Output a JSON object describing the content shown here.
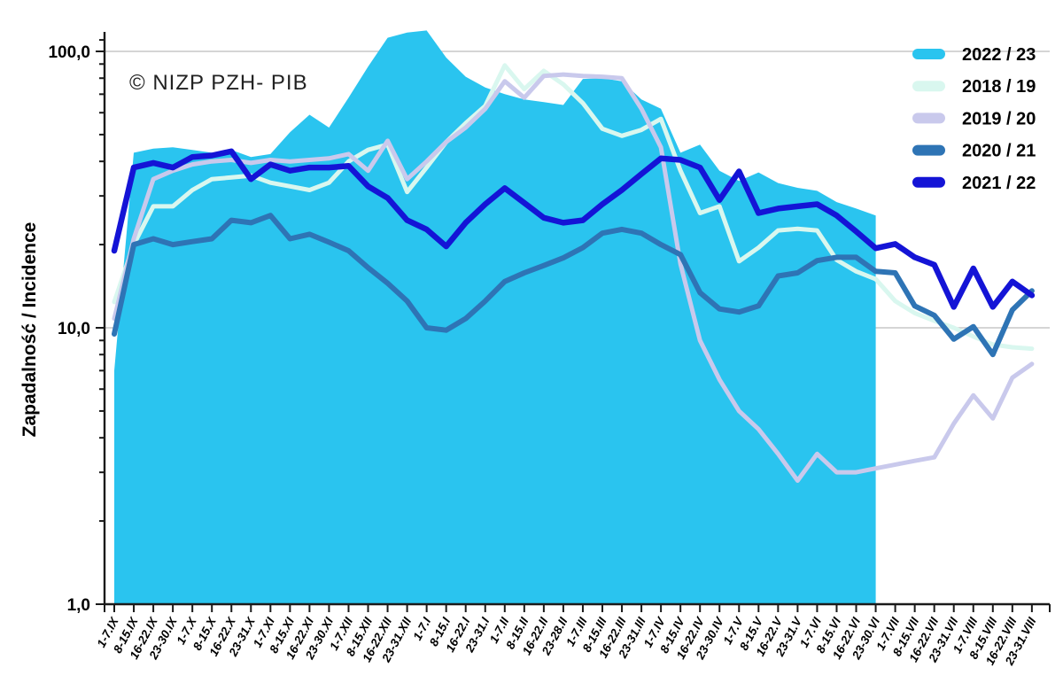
{
  "watermark": "© NIZP PZH- PIB",
  "chart_data": {
    "type": "area+line",
    "title": "",
    "ylabel": "Zapadalność  /  Incidence",
    "xlabel": "",
    "y_axis": {
      "scale": "log",
      "tick_labels": [
        "1,0",
        "10,0",
        "100,0"
      ],
      "tick_values": [
        1,
        10,
        100
      ],
      "ylim": [
        1,
        130
      ]
    },
    "grid": {
      "on": true,
      "values": [
        10,
        100
      ],
      "color": "#c7c7c7"
    },
    "legend_position": "top-right",
    "categories": [
      "1-7.IX",
      "8-15.IX",
      "16-22.IX",
      "23-30.IX",
      "1-7.X",
      "8-15.X",
      "16-22.X",
      "23-31.X",
      "1-7.XI",
      "8-15.XI",
      "16-22.XI",
      "23-30.XI",
      "1-7.XII",
      "8-15.XII",
      "16-22.XII",
      "23-31.XII",
      "1-7.I",
      "8-15.I",
      "16-22.I",
      "23-31.I",
      "1-7.II",
      "8-15.II",
      "16-22.II",
      "23-28.II",
      "1-7.III",
      "8-15.III",
      "16-22.III",
      "23-31.III",
      "1-7.IV",
      "8-15.IV",
      "16-22.IV",
      "23-30.IV",
      "1-7.V",
      "8-15.V",
      "16-22.V",
      "23-31.V",
      "1-7.VI",
      "8-15.VI",
      "16-22.VI",
      "23-30.VI",
      "1-7.VII",
      "8-15.VII",
      "16-22.VII",
      "23-31.VII",
      "1-7.VIII",
      "8-15.VIII",
      "16-22.VIII",
      "23-31.VIII"
    ],
    "series": [
      {
        "name": "2022 / 23",
        "style": "area",
        "color": "#2ac4ef",
        "stroke_width": 0,
        "values": [
          7,
          43,
          44.5,
          45,
          44,
          43,
          44,
          41.5,
          42.5,
          51,
          59,
          53,
          68,
          88,
          112,
          117,
          119,
          95,
          81,
          74,
          70,
          67,
          65.5,
          64,
          79.5,
          80,
          78,
          67,
          62,
          43,
          46,
          37,
          34,
          36.5,
          33.4,
          32.1,
          31.3,
          28.5,
          27,
          25.5
        ]
      },
      {
        "name": "2018 / 19",
        "style": "line",
        "color": "#d9f7ef",
        "stroke_width": 5,
        "values": [
          12.4,
          20,
          27.5,
          27.5,
          31.5,
          34.5,
          35,
          35.5,
          33.5,
          32.5,
          31.5,
          33.5,
          40,
          44,
          46,
          31,
          38,
          47,
          55,
          63.5,
          89,
          73,
          85,
          76,
          65,
          52.5,
          49.5,
          52,
          57,
          37,
          26,
          27.5,
          17.4,
          19.5,
          22.5,
          22.8,
          22.5,
          17.6,
          16,
          15,
          12.5,
          11.3,
          10.6,
          10,
          9.3,
          8.7,
          8.5,
          8.4
        ]
      },
      {
        "name": "2019 / 20",
        "style": "line",
        "color": "#c9c9ec",
        "stroke_width": 5,
        "values": [
          10.8,
          21,
          34.5,
          37,
          39,
          40,
          40.5,
          39.5,
          40.5,
          40,
          40.5,
          41,
          42.5,
          37,
          47.5,
          34.5,
          40,
          47,
          53,
          62,
          78,
          68,
          81.5,
          82.5,
          81.5,
          81,
          80,
          62,
          45,
          17,
          9,
          6.5,
          5,
          4.3,
          3.5,
          2.8,
          3.5,
          3,
          3,
          3.1,
          3.2,
          3.3,
          3.4,
          4.5,
          5.7,
          4.7,
          6.6,
          7.4
        ]
      },
      {
        "name": "2020 / 21",
        "style": "line",
        "color": "#2e74b5",
        "stroke_width": 6,
        "values": [
          9.5,
          20,
          21,
          20,
          20.5,
          21,
          24.5,
          24,
          25.5,
          21,
          21.8,
          20.4,
          19,
          16.5,
          14.5,
          12.5,
          10,
          9.8,
          10.8,
          12.5,
          14.7,
          15.8,
          16.8,
          17.9,
          19.5,
          22,
          22.7,
          22,
          20,
          18.4,
          13.4,
          11.7,
          11.4,
          12,
          15.4,
          15.8,
          17.5,
          18,
          18,
          16,
          15.8,
          12,
          11.1,
          9.1,
          10.1,
          8,
          11.6,
          13.6
        ]
      },
      {
        "name": "2021 / 22",
        "style": "line",
        "color": "#1414d6",
        "stroke_width": 6.5,
        "values": [
          19,
          38,
          39.5,
          38,
          41.5,
          42,
          43.5,
          34.5,
          39,
          37,
          38,
          38,
          38.5,
          32.5,
          29.5,
          24.5,
          22.7,
          19.7,
          24,
          28,
          32,
          28.3,
          25,
          24,
          24.5,
          28,
          31.5,
          36,
          41,
          40.5,
          38,
          29,
          36.8,
          26,
          27,
          27.5,
          28,
          25.5,
          22.3,
          19.4,
          20.1,
          18,
          16.9,
          11.9,
          16.4,
          11.9,
          14.7,
          13.1
        ]
      }
    ],
    "legend_items": [
      "2022 / 23",
      "2018 / 19",
      "2019 / 20",
      "2020 / 21",
      "2021 / 22"
    ]
  }
}
